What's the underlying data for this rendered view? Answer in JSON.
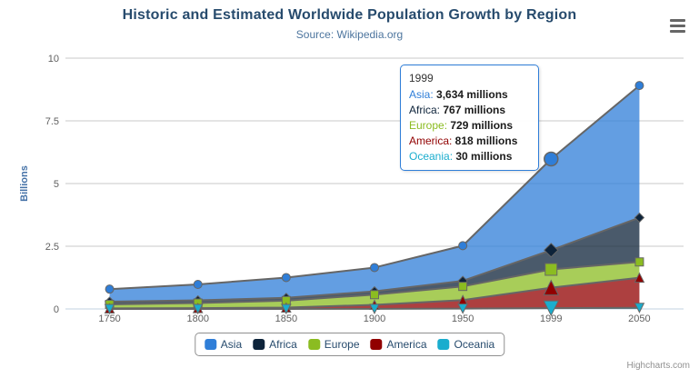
{
  "header": {
    "title": "Historic and Estimated Worldwide Population Growth by Region",
    "subtitle": "Source: Wikipedia.org"
  },
  "chart_data": {
    "type": "area",
    "stacking": "normal",
    "title": "Historic and Estimated Worldwide Population Growth by Region",
    "subtitle": "Source: Wikipedia.org",
    "categories": [
      "1750",
      "1800",
      "1850",
      "1900",
      "1950",
      "1999",
      "2050"
    ],
    "xlabel": "",
    "ylabel": "Billions",
    "ylim": [
      0,
      10
    ],
    "yticks": [
      0,
      2.5,
      5,
      7.5,
      10
    ],
    "values_unit": "millions",
    "grid": true,
    "legend_position": "bottom",
    "hover_category_index": 5,
    "series": [
      {
        "name": "Asia",
        "color": "#2f7ed8",
        "marker": "circle",
        "values": [
          502,
          635,
          809,
          947,
          1402,
          3634,
          5268
        ]
      },
      {
        "name": "Africa",
        "color": "#0d233a",
        "marker": "diamond",
        "values": [
          106,
          107,
          111,
          133,
          221,
          767,
          1766
        ]
      },
      {
        "name": "Europe",
        "color": "#8bbc21",
        "marker": "square",
        "values": [
          163,
          203,
          276,
          408,
          547,
          729,
          628
        ]
      },
      {
        "name": "America",
        "color": "#910000",
        "marker": "triangle",
        "values": [
          18,
          31,
          54,
          156,
          339,
          818,
          1201
        ]
      },
      {
        "name": "Oceania",
        "color": "#1aadce",
        "marker": "triangle-down",
        "values": [
          2,
          2,
          2,
          6,
          13,
          30,
          46
        ]
      }
    ]
  },
  "tooltip": {
    "header": "1999",
    "rows": [
      {
        "name": "Asia",
        "value": "3,634 millions",
        "color": "#2f7ed8"
      },
      {
        "name": "Africa",
        "value": "767 millions",
        "color": "#0d233a"
      },
      {
        "name": "Europe",
        "value": "729 millions",
        "color": "#8bbc21"
      },
      {
        "name": "America",
        "value": "818 millions",
        "color": "#910000"
      },
      {
        "name": "Oceania",
        "value": "30 millions",
        "color": "#1aadce"
      }
    ]
  },
  "legend": {
    "items": [
      "Asia",
      "Africa",
      "Europe",
      "America",
      "Oceania"
    ]
  },
  "credits": {
    "label": "Highcharts.com"
  },
  "icons": {
    "context_menu": "hamburger-icon"
  },
  "colors": {
    "title": "#274b6d",
    "subtitle": "#4d759e",
    "axis_labels": "#606060",
    "axis_title": "#4572A7",
    "grid_line": "#c9c9c9",
    "axis_line": "#C0D0E0",
    "series_outline": "#666666",
    "tooltip_border": "#2f7ed8",
    "legend_border": "#909090",
    "credits_text": "#909090"
  }
}
